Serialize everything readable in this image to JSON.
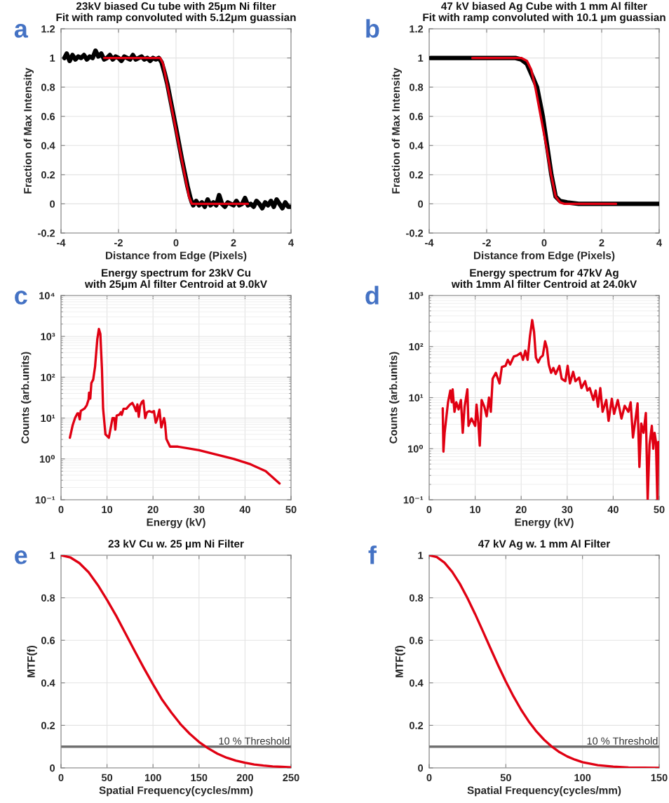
{
  "chart_data": [
    {
      "type": "line",
      "title": "23kV biased Cu tube with 25μm Ni filter\nFit with ramp convoluted with 5.12μm guassian",
      "xlabel": "Distance from Edge (Pixels)",
      "ylabel": "Fraction of Max Intensity",
      "annotations": [
        "a"
      ],
      "xlim": [
        -4,
        4
      ],
      "xticks": [
        -4,
        -2,
        0,
        2,
        4
      ],
      "ylim": [
        -0.2,
        1.2
      ],
      "yticks": [
        -0.2,
        0,
        0.2,
        0.4,
        0.6,
        0.8,
        1,
        1.2
      ],
      "grid": true,
      "series": [
        {
          "color": "#000000",
          "x": [
            -3.88,
            -3.8,
            -3.7,
            -3.6,
            -3.5,
            -3.4,
            -3.3,
            -3.2,
            -3.1,
            -3.0,
            -2.9,
            -2.8,
            -2.7,
            -2.6,
            -2.5,
            -2.4,
            -2.3,
            -2.2,
            -2.1,
            -2.0,
            -1.9,
            -1.8,
            -1.7,
            -1.6,
            -1.5,
            -1.4,
            -1.3,
            -1.2,
            -1.1,
            -1.0,
            -0.9,
            -0.8,
            -0.7,
            -0.6,
            -0.5,
            -0.4,
            -0.3,
            -0.2,
            0.0,
            0.2,
            0.4,
            0.5,
            0.55,
            0.6,
            0.7,
            0.8,
            0.9,
            1.0,
            1.1,
            1.2,
            1.3,
            1.4,
            1.5,
            1.6,
            1.7,
            1.8,
            1.9,
            2.0,
            2.1,
            2.2,
            2.3,
            2.4,
            2.5,
            2.6,
            2.7,
            2.8,
            2.9,
            3.0,
            3.1,
            3.2,
            3.3,
            3.4,
            3.5,
            3.6,
            3.7,
            3.8,
            3.9,
            4.0
          ],
          "values": [
            1.0,
            1.03,
            0.98,
            1.02,
            0.99,
            1.01,
            1.0,
            1.02,
            0.99,
            1.01,
            1.0,
            1.05,
            1.01,
            1.03,
            0.99,
            1.0,
            1.02,
            0.99,
            1.01,
            1.0,
            0.98,
            1.01,
            1.0,
            0.99,
            1.02,
            0.99,
            1.0,
            1.01,
            0.99,
            1.0,
            0.98,
            1.0,
            0.99,
            1.0,
            0.97,
            0.9,
            0.82,
            0.72,
            0.52,
            0.31,
            0.12,
            0.04,
            0.01,
            -0.01,
            0.02,
            -0.01,
            0.01,
            -0.02,
            0.03,
            -0.01,
            0.01,
            -0.01,
            0.06,
            0.0,
            -0.02,
            0.01,
            0.0,
            -0.01,
            0.02,
            -0.01,
            0.0,
            0.04,
            -0.01,
            0.0,
            -0.02,
            0.02,
            0.0,
            -0.03,
            0.01,
            -0.01,
            0.02,
            -0.02,
            0.03,
            0.0,
            -0.03,
            0.01,
            -0.02,
            -0.02
          ]
        },
        {
          "color": "#e00012",
          "x": [
            -2.5,
            -0.55,
            -0.45,
            0.45,
            0.55,
            2.5
          ],
          "values": [
            1,
            1,
            0.96,
            0.05,
            0,
            0
          ]
        }
      ]
    },
    {
      "type": "line",
      "title": "47 kV biased Ag Cube with 1 mm Al filter\nFit with ramp convoluted with 10.1 μm guassian",
      "xlabel": "Distance from Edge (Pixels)",
      "ylabel": "Fraction of Max Intensity",
      "annotations": [
        "b"
      ],
      "xlim": [
        -4,
        4
      ],
      "xticks": [
        -4,
        -2,
        0,
        2,
        4
      ],
      "ylim": [
        -0.2,
        1.2
      ],
      "yticks": [
        -0.2,
        0,
        0.2,
        0.4,
        0.6,
        0.8,
        1,
        1.2
      ],
      "grid": true,
      "series": [
        {
          "color": "#000000",
          "x": [
            -3.95,
            -2,
            -1,
            -0.8,
            -0.6,
            -0.4,
            -0.25,
            -0.05,
            0.1,
            0.25,
            0.4,
            0.55,
            0.8,
            1.2,
            2,
            3,
            4
          ],
          "values": [
            1,
            1,
            1,
            0.99,
            0.96,
            0.87,
            0.8,
            0.6,
            0.4,
            0.2,
            0.05,
            0.02,
            0.01,
            0,
            0,
            0,
            0
          ]
        },
        {
          "color": "#e00012",
          "x": [
            -2.5,
            -0.8,
            -0.6,
            -0.45,
            -0.3,
            -0.1,
            0.07,
            0.24,
            0.4,
            0.55,
            0.7,
            2.5
          ],
          "values": [
            1,
            1,
            0.98,
            0.92,
            0.79,
            0.58,
            0.4,
            0.2,
            0.05,
            0.01,
            0,
            0
          ]
        }
      ]
    },
    {
      "type": "line",
      "title": "Energy spectrum for 23kV Cu\nwith 25μm Al filter Centroid at 9.0kV",
      "xlabel": "Energy (kV)",
      "ylabel": "Counts (arb.units)",
      "annotations": [
        "c"
      ],
      "log": "y",
      "xlim": [
        0,
        50
      ],
      "xticks": [
        0,
        10,
        20,
        30,
        40,
        50
      ],
      "ylim": [
        0.1,
        10000
      ],
      "yticks": [
        {
          "value": 0.1,
          "label": "10⁻¹"
        },
        {
          "value": 1,
          "label": "10⁰"
        },
        {
          "value": 10,
          "label": "10¹"
        },
        {
          "value": 100,
          "label": "10²"
        },
        {
          "value": 1000,
          "label": "10³"
        },
        {
          "value": 10000,
          "label": "10⁴"
        }
      ],
      "grid": true,
      "series": [
        {
          "color": "#e00012",
          "x": [
            1.93,
            2.54,
            3.05,
            3.56,
            3.8,
            4.07,
            4.3,
            5.09,
            5.6,
            6.0,
            6.1,
            6.36,
            6.6,
            7.0,
            7.4,
            7.9,
            8.24,
            8.55,
            8.9,
            9.15,
            9.66,
            10.4,
            11.2,
            11.6,
            11.8,
            12.1,
            12.7,
            13.0,
            13.2,
            13.6,
            14.2,
            15.0,
            15.5,
            15.9,
            16.3,
            16.6,
            16.9,
            17.2,
            17.6,
            17.9,
            18.3,
            18.7,
            19.2,
            19.8,
            20.2,
            20.6,
            20.9,
            21.4,
            21.8,
            22.4,
            22.6,
            22.9,
            23.7,
            25.4,
            30.0,
            37.6,
            41.2,
            44.5,
            47.5
          ],
          "values": [
            3.3,
            6.7,
            10,
            13,
            13,
            9.3,
            15,
            17,
            20.6,
            28.6,
            42,
            30,
            72,
            88,
            180,
            870,
            1520,
            1150,
            158,
            17,
            4.0,
            3.3,
            10,
            10,
            5.2,
            11.5,
            12.2,
            13.9,
            12,
            16.9,
            16.9,
            21.5,
            23.5,
            19.3,
            14.8,
            21.5,
            10.7,
            20,
            25,
            26.8,
            10,
            13.9,
            14.8,
            13.9,
            14.8,
            7.7,
            9.3,
            16,
            5.9,
            10,
            7.7,
            3.1,
            2.0,
            2.0,
            1.63,
            1.0,
            0.74,
            0.5,
            0.25
          ]
        }
      ]
    },
    {
      "type": "line",
      "title": "Energy spectrum for 47kV Ag\nwith 1mm Al filter Centroid at 24.0kV",
      "xlabel": "Energy (kV)",
      "ylabel": "Counts (arb.units)",
      "annotations": [
        "d"
      ],
      "log": "y",
      "xlim": [
        0,
        50
      ],
      "xticks": [
        0,
        10,
        20,
        30,
        40,
        50
      ],
      "ylim": [
        0.1,
        1000
      ],
      "yticks": [
        {
          "value": 0.1,
          "label": "10⁻¹"
        },
        {
          "value": 1,
          "label": "10⁰"
        },
        {
          "value": 10,
          "label": "10¹"
        },
        {
          "value": 100,
          "label": "10²"
        },
        {
          "value": 1000,
          "label": "10³"
        }
      ],
      "grid": true,
      "series": [
        {
          "color": "#e00012",
          "x": [
            2.95,
            3.1,
            3.36,
            3.76,
            4.1,
            4.6,
            4.9,
            5.1,
            5.5,
            5.9,
            6.4,
            6.9,
            7.3,
            7.7,
            8.3,
            8.55,
            9.2,
            10.0,
            10.3,
            10.7,
            11.0,
            11.4,
            12.0,
            12.5,
            13.0,
            13.4,
            13.8,
            14.5,
            15.3,
            15.8,
            16.6,
            17.1,
            17.6,
            18.4,
            19.1,
            19.9,
            20.4,
            20.9,
            21.4,
            21.9,
            22.4,
            22.8,
            23.2,
            23.7,
            24.2,
            24.7,
            25.2,
            25.6,
            26.0,
            26.5,
            27.0,
            27.5,
            28.3,
            28.8,
            29.6,
            30.1,
            30.6,
            31.3,
            31.8,
            32.6,
            33.1,
            33.9,
            34.4,
            34.9,
            35.7,
            36.2,
            36.7,
            37.2,
            37.7,
            38.5,
            39.0,
            39.7,
            40.2,
            41.0,
            41.8,
            42.5,
            43.3,
            43.8,
            44.3,
            44.8,
            45.3,
            45.7,
            46.1,
            46.6,
            47.1,
            47.5,
            47.9,
            48.4,
            48.7,
            49.0,
            49.3,
            49.6,
            49.8
          ],
          "values": [
            6.2,
            0.88,
            2.05,
            4.3,
            8.1,
            13.8,
            8.1,
            14.5,
            5.3,
            8.1,
            5.9,
            9.0,
            2.05,
            6.6,
            14.5,
            2.8,
            3.9,
            2.8,
            7.3,
            3.1,
            1.15,
            9.0,
            6.6,
            4.3,
            10,
            5.3,
            23.5,
            30.6,
            19,
            39.8,
            42,
            55,
            44.6,
            64,
            67,
            75,
            55,
            83,
            55,
            158,
            330,
            195,
            61,
            49,
            61,
            67,
            127,
            93,
            44.6,
            30.6,
            38,
            29,
            42,
            23.5,
            21,
            42,
            19,
            32,
            21,
            24.7,
            15.4,
            21,
            13.8,
            15.4,
            9.0,
            13.8,
            6.6,
            15.4,
            5.3,
            9.0,
            3.5,
            9.5,
            4.8,
            9.0,
            3.9,
            6.9,
            5.3,
            8.1,
            1.66,
            3.5,
            7.7,
            0.44,
            3.1,
            2.05,
            5.0,
            0.1,
            1.2,
            2.8,
            1.0,
            2.05,
            1.35,
            0.1,
            1.35
          ]
        }
      ]
    },
    {
      "type": "line",
      "title": "23 kV Cu w. 25 μm Ni Filter",
      "xlabel": "Spatial Frequency(cycles/mm)",
      "ylabel": "MTF(f)",
      "annotations": [
        "e"
      ],
      "xlim": [
        0,
        250
      ],
      "xticks": [
        0,
        50,
        100,
        150,
        200,
        250
      ],
      "ylim": [
        0,
        1
      ],
      "yticks": [
        0,
        0.2,
        0.4,
        0.6,
        0.8,
        1
      ],
      "grid": true,
      "ref_lines": [
        {
          "axis": "y",
          "value": 0.1,
          "label": "10 % Threshold",
          "color": "#707070"
        }
      ],
      "series": [
        {
          "color": "#e00012",
          "x": [
            0,
            10,
            20,
            30,
            40,
            50,
            60,
            70,
            80,
            90,
            100,
            110,
            120,
            130,
            140,
            150,
            160,
            170,
            180,
            190,
            200,
            210,
            220,
            230,
            240,
            250
          ],
          "values": [
            1,
            0.99,
            0.963,
            0.92,
            0.86,
            0.79,
            0.715,
            0.633,
            0.55,
            0.47,
            0.393,
            0.32,
            0.26,
            0.205,
            0.16,
            0.122,
            0.092,
            0.067,
            0.048,
            0.034,
            0.024,
            0.016,
            0.011,
            0.007,
            0.005,
            0.003
          ]
        }
      ]
    },
    {
      "type": "line",
      "title": "47 kV Ag w. 1 mm Al Filter",
      "xlabel": "Spatial Frequency(cycles/mm)",
      "ylabel": "MTF(f)",
      "annotations": [
        "f"
      ],
      "xlim": [
        0,
        150
      ],
      "xticks": [
        0,
        50,
        100,
        150
      ],
      "ylim": [
        0,
        1
      ],
      "yticks": [
        0,
        0.2,
        0.4,
        0.6,
        0.8,
        1
      ],
      "grid": true,
      "ref_lines": [
        {
          "axis": "y",
          "value": 0.1,
          "label": "10 % Threshold",
          "color": "#707070"
        }
      ],
      "series": [
        {
          "color": "#e00012",
          "x": [
            0,
            5,
            10,
            15,
            20,
            25,
            30,
            35,
            40,
            45,
            50,
            55,
            60,
            65,
            70,
            75,
            80,
            85,
            90,
            95,
            100,
            110,
            120,
            130,
            140,
            150
          ],
          "values": [
            1,
            0.991,
            0.965,
            0.922,
            0.866,
            0.798,
            0.723,
            0.643,
            0.562,
            0.482,
            0.406,
            0.336,
            0.273,
            0.218,
            0.171,
            0.132,
            0.1,
            0.074,
            0.054,
            0.039,
            0.027,
            0.013,
            0.006,
            0.002,
            0.001,
            0.0
          ]
        }
      ]
    }
  ]
}
